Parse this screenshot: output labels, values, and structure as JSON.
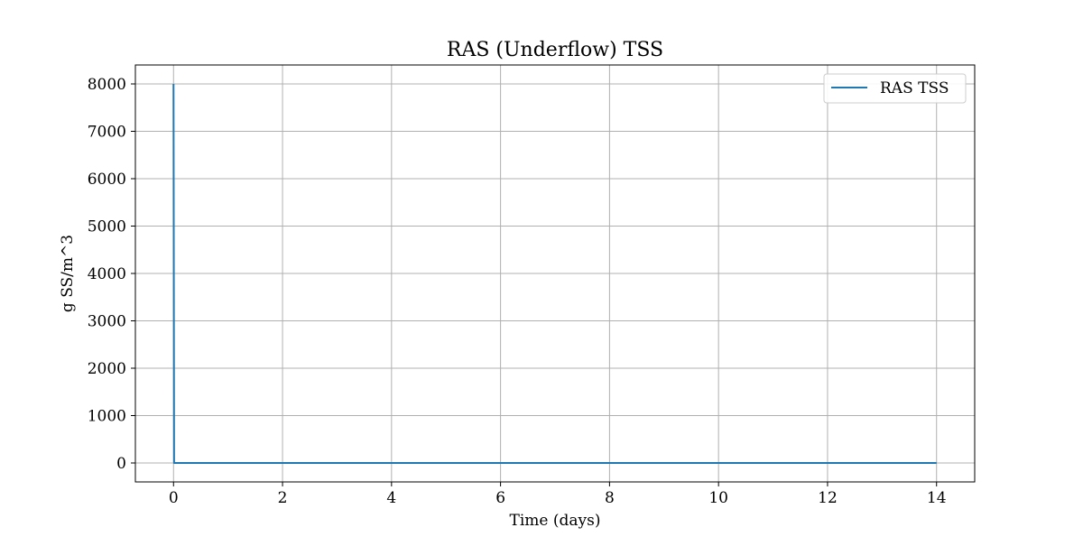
{
  "chart_data": {
    "type": "line",
    "title": "RAS (Underflow) TSS",
    "xlabel": "Time (days)",
    "ylabel": "g SS/m^3",
    "xlim": [
      -0.7,
      14.7
    ],
    "ylim": [
      -400,
      8400
    ],
    "xticks": [
      0,
      2,
      4,
      6,
      8,
      10,
      12,
      14
    ],
    "yticks": [
      0,
      1000,
      2000,
      3000,
      4000,
      5000,
      6000,
      7000,
      8000
    ],
    "grid": true,
    "legend_position": "upper right",
    "series": [
      {
        "name": "RAS TSS",
        "color": "#1f77b4",
        "x": [
          0,
          0.01,
          0.02,
          0.05,
          1,
          2,
          4,
          6,
          8,
          10,
          12,
          14
        ],
        "y": [
          8000,
          0,
          0,
          0,
          0,
          0,
          0,
          0,
          0,
          0,
          0,
          0
        ]
      }
    ]
  }
}
